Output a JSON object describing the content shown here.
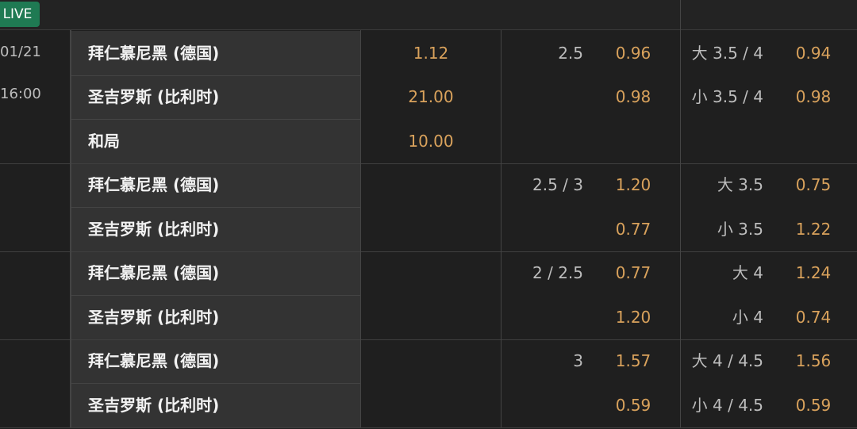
{
  "header": {
    "live": "LIVE"
  },
  "match": {
    "date": "01/21",
    "time": "16:00"
  },
  "groups": [
    {
      "rows": [
        {
          "team": "拜仁慕尼黑 (德国)",
          "odds": "1.12",
          "hdp_line": "2.5",
          "hdp_odds": "0.96",
          "ou_line": "大 3.5 / 4",
          "ou_odds": "0.94"
        },
        {
          "team": "圣吉罗斯 (比利时)",
          "odds": "21.00",
          "hdp_odds": "0.98",
          "ou_line": "小 3.5 / 4",
          "ou_odds": "0.98"
        },
        {
          "team": "和局",
          "odds": "10.00"
        }
      ]
    },
    {
      "rows": [
        {
          "team": "拜仁慕尼黑 (德国)",
          "hdp_line": "2.5 / 3",
          "hdp_odds": "1.20",
          "ou_line": "大 3.5",
          "ou_odds": "0.75"
        },
        {
          "team": "圣吉罗斯 (比利时)",
          "hdp_odds": "0.77",
          "ou_line": "小 3.5",
          "ou_odds": "1.22"
        }
      ]
    },
    {
      "rows": [
        {
          "team": "拜仁慕尼黑 (德国)",
          "hdp_line": "2 / 2.5",
          "hdp_odds": "0.77",
          "ou_line": "大 4",
          "ou_odds": "1.24"
        },
        {
          "team": "圣吉罗斯 (比利时)",
          "hdp_odds": "1.20",
          "ou_line": "小 4",
          "ou_odds": "0.74"
        }
      ]
    },
    {
      "rows": [
        {
          "team": "拜仁慕尼黑 (德国)",
          "hdp_line": "3",
          "hdp_odds": "1.57",
          "ou_line": "大 4 / 4.5",
          "ou_odds": "1.56"
        },
        {
          "team": "圣吉罗斯 (比利时)",
          "hdp_odds": "0.59",
          "ou_line": "小 4 / 4.5",
          "ou_odds": "0.59"
        }
      ]
    }
  ]
}
